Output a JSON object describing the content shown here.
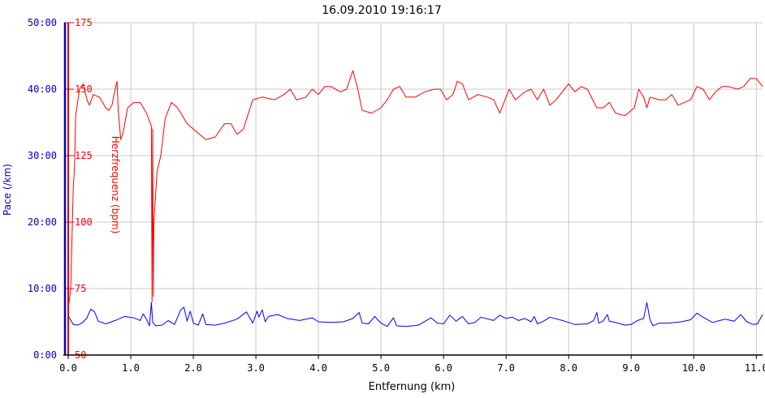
{
  "chart_data": {
    "type": "line",
    "title": "16.09.2010 19:16:17",
    "xlabel": "Entfernung (km)",
    "ylabel_left": "Pace (/km)",
    "ylabel_right": "Herzfrequenz (bpm)",
    "xlim": [
      0,
      11.1
    ],
    "x_ticks": [
      "0.0",
      "1.0",
      "2.0",
      "3.0",
      "4.0",
      "5.0",
      "6.0",
      "7.0",
      "8.0",
      "9.0",
      "10.0",
      "11.0"
    ],
    "pace_axis": {
      "range_minutes": [
        0,
        50
      ],
      "ticks": [
        "0:00",
        "10:00",
        "20:00",
        "30:00",
        "40:00",
        "50:00"
      ]
    },
    "hr_axis": {
      "range": [
        50,
        175
      ],
      "ticks": [
        "50",
        "75",
        "100",
        "125",
        "150",
        "175"
      ]
    },
    "grid": true,
    "colors": {
      "pace": "#0000ff",
      "heart_rate": "#ff0000",
      "pace_axis": "#0000cc",
      "hr_axis": "#dd0000"
    },
    "series": [
      {
        "name": "Herzfrequenz (bpm)",
        "color": "#ff0000",
        "points": [
          [
            0.0,
            67
          ],
          [
            0.04,
            75
          ],
          [
            0.08,
            113
          ],
          [
            0.1,
            120
          ],
          [
            0.12,
            140
          ],
          [
            0.18,
            150
          ],
          [
            0.24,
            152
          ],
          [
            0.3,
            146
          ],
          [
            0.34,
            144
          ],
          [
            0.4,
            148
          ],
          [
            0.5,
            147
          ],
          [
            0.6,
            143
          ],
          [
            0.65,
            142
          ],
          [
            0.7,
            144
          ],
          [
            0.75,
            150
          ],
          [
            0.78,
            153
          ],
          [
            0.8,
            142
          ],
          [
            0.84,
            131
          ],
          [
            0.88,
            134
          ],
          [
            0.95,
            143
          ],
          [
            1.05,
            145
          ],
          [
            1.15,
            145
          ],
          [
            1.25,
            141
          ],
          [
            1.3,
            138
          ],
          [
            1.33,
            136
          ],
          [
            1.34,
            70
          ],
          [
            1.35,
            135
          ],
          [
            1.36,
            72
          ],
          [
            1.37,
            100
          ],
          [
            1.42,
            119
          ],
          [
            1.48,
            125
          ],
          [
            1.55,
            139
          ],
          [
            1.65,
            145
          ],
          [
            1.75,
            143
          ],
          [
            1.9,
            137
          ],
          [
            2.05,
            134
          ],
          [
            2.2,
            131
          ],
          [
            2.35,
            132
          ],
          [
            2.5,
            137
          ],
          [
            2.6,
            137
          ],
          [
            2.7,
            133
          ],
          [
            2.8,
            135
          ],
          [
            2.95,
            146
          ],
          [
            3.1,
            147
          ],
          [
            3.3,
            146
          ],
          [
            3.45,
            148
          ],
          [
            3.55,
            150
          ],
          [
            3.65,
            146
          ],
          [
            3.8,
            147
          ],
          [
            3.9,
            150
          ],
          [
            4.0,
            148
          ],
          [
            4.1,
            151
          ],
          [
            4.2,
            151
          ],
          [
            4.35,
            149
          ],
          [
            4.45,
            150
          ],
          [
            4.55,
            157
          ],
          [
            4.62,
            151
          ],
          [
            4.7,
            142
          ],
          [
            4.85,
            141
          ],
          [
            5.0,
            143
          ],
          [
            5.1,
            146
          ],
          [
            5.2,
            150
          ],
          [
            5.3,
            151
          ],
          [
            5.4,
            147
          ],
          [
            5.55,
            147
          ],
          [
            5.7,
            149
          ],
          [
            5.85,
            150
          ],
          [
            5.95,
            150
          ],
          [
            6.05,
            146
          ],
          [
            6.15,
            148
          ],
          [
            6.22,
            153
          ],
          [
            6.3,
            152
          ],
          [
            6.4,
            146
          ],
          [
            6.55,
            148
          ],
          [
            6.7,
            147
          ],
          [
            6.8,
            146
          ],
          [
            6.9,
            141
          ],
          [
            6.95,
            144
          ],
          [
            7.05,
            150
          ],
          [
            7.15,
            146
          ],
          [
            7.3,
            149
          ],
          [
            7.4,
            150
          ],
          [
            7.5,
            146
          ],
          [
            7.6,
            150
          ],
          [
            7.7,
            144
          ],
          [
            7.8,
            146
          ],
          [
            7.9,
            149
          ],
          [
            8.0,
            152
          ],
          [
            8.1,
            149
          ],
          [
            8.2,
            151
          ],
          [
            8.3,
            150
          ],
          [
            8.45,
            143
          ],
          [
            8.55,
            143
          ],
          [
            8.65,
            145
          ],
          [
            8.75,
            141
          ],
          [
            8.9,
            140
          ],
          [
            9.05,
            143
          ],
          [
            9.12,
            150
          ],
          [
            9.2,
            147
          ],
          [
            9.25,
            143
          ],
          [
            9.3,
            147
          ],
          [
            9.45,
            146
          ],
          [
            9.55,
            146
          ],
          [
            9.65,
            148
          ],
          [
            9.75,
            144
          ],
          [
            9.85,
            145
          ],
          [
            9.95,
            146
          ],
          [
            10.05,
            151
          ],
          [
            10.15,
            150
          ],
          [
            10.25,
            146
          ],
          [
            10.35,
            149
          ],
          [
            10.45,
            151
          ],
          [
            10.55,
            151
          ],
          [
            10.7,
            150
          ],
          [
            10.8,
            151
          ],
          [
            10.9,
            154
          ],
          [
            11.0,
            154
          ],
          [
            11.1,
            151
          ]
        ]
      },
      {
        "name": "Pace (/km)",
        "color": "#0000ff",
        "points": [
          [
            0.0,
            5.9
          ],
          [
            0.08,
            4.6
          ],
          [
            0.15,
            4.5
          ],
          [
            0.22,
            4.8
          ],
          [
            0.3,
            5.6
          ],
          [
            0.36,
            6.9
          ],
          [
            0.42,
            6.5
          ],
          [
            0.48,
            5.1
          ],
          [
            0.6,
            4.7
          ],
          [
            0.75,
            5.2
          ],
          [
            0.9,
            5.8
          ],
          [
            1.05,
            5.6
          ],
          [
            1.15,
            5.2
          ],
          [
            1.2,
            6.2
          ],
          [
            1.25,
            5.4
          ],
          [
            1.3,
            4.4
          ],
          [
            1.33,
            7.9
          ],
          [
            1.35,
            4.9
          ],
          [
            1.4,
            4.4
          ],
          [
            1.5,
            4.5
          ],
          [
            1.6,
            5.2
          ],
          [
            1.7,
            4.6
          ],
          [
            1.8,
            6.8
          ],
          [
            1.85,
            7.2
          ],
          [
            1.9,
            5.1
          ],
          [
            1.95,
            6.6
          ],
          [
            2.0,
            4.8
          ],
          [
            2.08,
            4.5
          ],
          [
            2.15,
            6.2
          ],
          [
            2.2,
            4.6
          ],
          [
            2.35,
            4.5
          ],
          [
            2.5,
            4.8
          ],
          [
            2.7,
            5.4
          ],
          [
            2.85,
            6.5
          ],
          [
            2.95,
            4.8
          ],
          [
            3.02,
            6.6
          ],
          [
            3.05,
            5.7
          ],
          [
            3.1,
            6.8
          ],
          [
            3.15,
            5.0
          ],
          [
            3.2,
            5.8
          ],
          [
            3.35,
            6.1
          ],
          [
            3.5,
            5.5
          ],
          [
            3.7,
            5.2
          ],
          [
            3.9,
            5.6
          ],
          [
            4.0,
            5.0
          ],
          [
            4.2,
            4.9
          ],
          [
            4.4,
            5.0
          ],
          [
            4.55,
            5.5
          ],
          [
            4.65,
            6.4
          ],
          [
            4.7,
            4.8
          ],
          [
            4.8,
            4.7
          ],
          [
            4.9,
            5.8
          ],
          [
            5.0,
            4.8
          ],
          [
            5.1,
            4.3
          ],
          [
            5.2,
            5.6
          ],
          [
            5.25,
            4.4
          ],
          [
            5.4,
            4.3
          ],
          [
            5.6,
            4.5
          ],
          [
            5.8,
            5.6
          ],
          [
            5.9,
            4.8
          ],
          [
            6.0,
            4.7
          ],
          [
            6.1,
            6.0
          ],
          [
            6.2,
            5.1
          ],
          [
            6.3,
            5.8
          ],
          [
            6.4,
            4.7
          ],
          [
            6.5,
            4.9
          ],
          [
            6.6,
            5.7
          ],
          [
            6.8,
            5.2
          ],
          [
            6.9,
            6.0
          ],
          [
            7.0,
            5.5
          ],
          [
            7.1,
            5.7
          ],
          [
            7.2,
            5.2
          ],
          [
            7.3,
            5.5
          ],
          [
            7.4,
            5.0
          ],
          [
            7.45,
            5.8
          ],
          [
            7.5,
            4.7
          ],
          [
            7.6,
            5.1
          ],
          [
            7.7,
            5.7
          ],
          [
            7.9,
            5.2
          ],
          [
            8.0,
            4.9
          ],
          [
            8.1,
            4.6
          ],
          [
            8.3,
            4.7
          ],
          [
            8.4,
            5.2
          ],
          [
            8.45,
            6.4
          ],
          [
            8.48,
            4.8
          ],
          [
            8.55,
            5.1
          ],
          [
            8.62,
            6.1
          ],
          [
            8.65,
            5.1
          ],
          [
            8.75,
            4.9
          ],
          [
            8.9,
            4.5
          ],
          [
            9.0,
            4.6
          ],
          [
            9.1,
            5.2
          ],
          [
            9.2,
            5.5
          ],
          [
            9.25,
            7.9
          ],
          [
            9.3,
            5.3
          ],
          [
            9.35,
            4.4
          ],
          [
            9.45,
            4.8
          ],
          [
            9.6,
            4.8
          ],
          [
            9.8,
            5.0
          ],
          [
            9.95,
            5.3
          ],
          [
            10.05,
            6.3
          ],
          [
            10.15,
            5.7
          ],
          [
            10.3,
            4.9
          ],
          [
            10.5,
            5.4
          ],
          [
            10.65,
            5.1
          ],
          [
            10.75,
            6.1
          ],
          [
            10.85,
            5.0
          ],
          [
            10.95,
            4.6
          ],
          [
            11.02,
            4.7
          ],
          [
            11.1,
            6.1
          ]
        ]
      }
    ]
  }
}
